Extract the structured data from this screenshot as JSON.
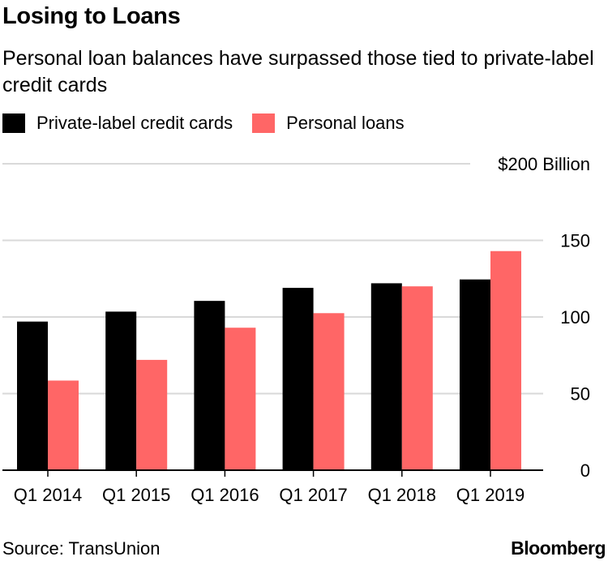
{
  "header": {
    "title": "Losing to Loans",
    "subtitle": "Personal loan balances have surpassed those tied to private-label credit cards"
  },
  "legend": [
    {
      "label": "Private-label credit cards",
      "color": "#000000"
    },
    {
      "label": "Personal loans",
      "color": "#ff6666"
    }
  ],
  "chart_data": {
    "type": "bar",
    "categories": [
      "Q1 2014",
      "Q1 2015",
      "Q1 2016",
      "Q1 2017",
      "Q1 2018",
      "Q1 2019"
    ],
    "series": [
      {
        "name": "Private-label credit cards",
        "color": "#000000",
        "values": [
          97,
          103.5,
          110.5,
          119,
          122,
          124.5
        ]
      },
      {
        "name": "Personal loans",
        "color": "#ff6666",
        "values": [
          58.5,
          72,
          93,
          102.5,
          120,
          143
        ]
      }
    ],
    "ylim": [
      0,
      200
    ],
    "yticks": [
      0,
      50,
      100,
      150,
      200
    ],
    "ytick_labels": [
      "0",
      "50",
      "100",
      "150",
      "$200 Billion"
    ],
    "grid": true,
    "legend_position": "top-left"
  },
  "footer": {
    "source": "Source: TransUnion",
    "brand": "Bloomberg"
  }
}
